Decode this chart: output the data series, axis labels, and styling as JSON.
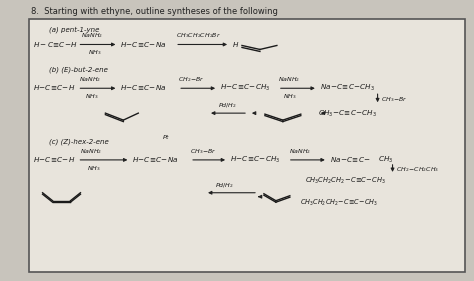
{
  "title": "8.  Starting with ethyne, outline syntheses of the following",
  "bg_color": "#c8c4bc",
  "box_bg": "#e8e4dc",
  "figsize": [
    4.74,
    2.81
  ],
  "dpi": 100,
  "sections": {
    "a_label": "(a) pent-1-yne",
    "b_label": "(b) (E)-but-2-ene",
    "c_label": "(c) (Z)-hex-2-ene"
  }
}
